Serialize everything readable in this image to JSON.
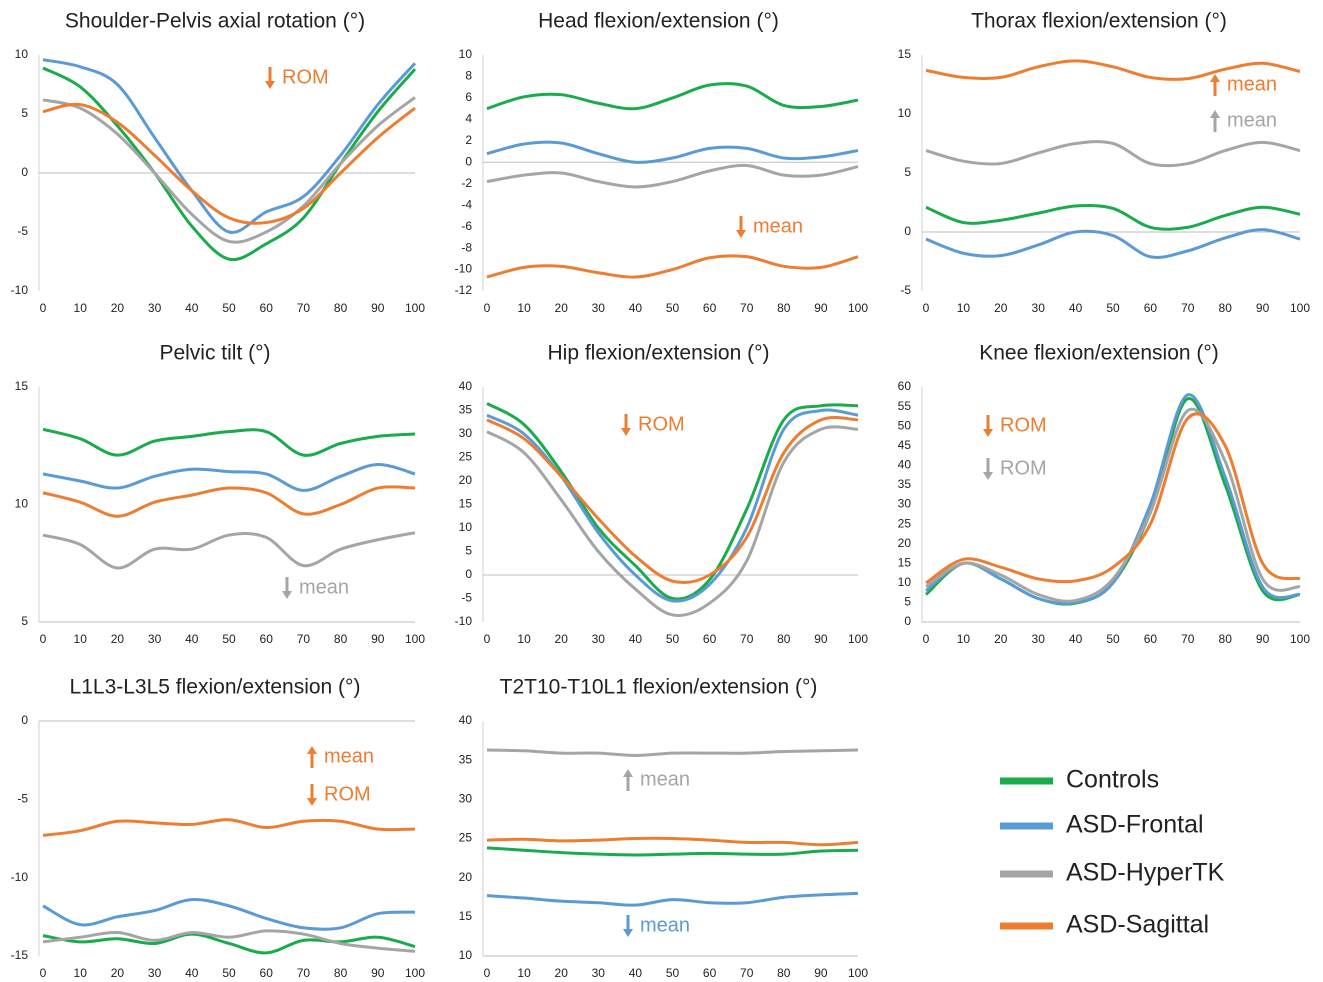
{
  "chart_data": [
    {
      "type": "line",
      "title": "Shoulder-Pelvis axial rotation (°)",
      "x": [
        0,
        10,
        20,
        30,
        40,
        50,
        60,
        70,
        80,
        90,
        100
      ],
      "xlim": [
        0,
        100
      ],
      "xticks": [
        0,
        10,
        20,
        30,
        40,
        50,
        60,
        70,
        80,
        90,
        100
      ],
      "ylim": [
        -10,
        10
      ],
      "yticks": [
        -10,
        -5,
        0,
        5,
        10
      ],
      "series": [
        {
          "name": "Controls",
          "color": "#1aab4a",
          "values": [
            8.9,
            7.3,
            4,
            0,
            -4.5,
            -7.3,
            -6,
            -3.8,
            0.8,
            5.2,
            8.8
          ]
        },
        {
          "name": "ASD-Frontal",
          "color": "#5b9bd5",
          "values": [
            9.6,
            9,
            7.5,
            3,
            -1.5,
            -5,
            -3.3,
            -2,
            1.5,
            5.8,
            9.3
          ]
        },
        {
          "name": "ASD-HyperTK",
          "color": "#a5a5a5",
          "values": [
            6.2,
            5.5,
            3.3,
            0,
            -3.5,
            -5.8,
            -5,
            -2.8,
            0.8,
            4,
            6.4
          ]
        },
        {
          "name": "ASD-Sagittal",
          "color": "#ed7d31",
          "values": [
            5.2,
            5.8,
            4.3,
            1.5,
            -1.5,
            -3.8,
            -4.2,
            -3,
            0,
            3,
            5.5
          ]
        }
      ],
      "annotations": [
        {
          "text": "ROM",
          "direction": "down",
          "color": "#ed7d31"
        }
      ]
    },
    {
      "type": "line",
      "title": "Head flexion/extension (°)",
      "x": [
        0,
        10,
        20,
        30,
        40,
        50,
        60,
        70,
        80,
        90,
        100
      ],
      "xlim": [
        0,
        100
      ],
      "xticks": [
        0,
        10,
        20,
        30,
        40,
        50,
        60,
        70,
        80,
        90,
        100
      ],
      "ylim": [
        -12,
        10
      ],
      "yticks": [
        -12,
        -10,
        -8,
        -6,
        -4,
        -2,
        0,
        2,
        4,
        6,
        8,
        10
      ],
      "series": [
        {
          "color": "#1aab4a",
          "values": [
            5,
            6.1,
            6.3,
            5.5,
            5,
            6,
            7.2,
            7.1,
            5.3,
            5.2,
            5.8
          ]
        },
        {
          "color": "#5b9bd5",
          "values": [
            0.8,
            1.7,
            1.8,
            0.8,
            0,
            0.4,
            1.3,
            1.3,
            0.4,
            0.5,
            1.1
          ]
        },
        {
          "color": "#a5a5a5",
          "values": [
            -1.8,
            -1.2,
            -1,
            -1.8,
            -2.3,
            -1.8,
            -0.8,
            -0.3,
            -1.2,
            -1.2,
            -0.4
          ]
        },
        {
          "color": "#ed7d31",
          "values": [
            -10.7,
            -9.8,
            -9.7,
            -10.3,
            -10.7,
            -10,
            -8.9,
            -8.8,
            -9.7,
            -9.8,
            -8.8
          ]
        }
      ],
      "annotations": [
        {
          "text": "mean",
          "direction": "down",
          "color": "#ed7d31"
        }
      ]
    },
    {
      "type": "line",
      "title": "Thorax flexion/extension (°)",
      "x": [
        0,
        10,
        20,
        30,
        40,
        50,
        60,
        70,
        80,
        90,
        100
      ],
      "xlim": [
        0,
        100
      ],
      "xticks": [
        0,
        10,
        20,
        30,
        40,
        50,
        60,
        70,
        80,
        90,
        100
      ],
      "ylim": [
        -5,
        15
      ],
      "yticks": [
        -5,
        0,
        5,
        10,
        15
      ],
      "series": [
        {
          "color": "#1aab4a",
          "values": [
            2.1,
            0.8,
            1,
            1.6,
            2.2,
            2,
            0.4,
            0.4,
            1.4,
            2.1,
            1.5
          ]
        },
        {
          "color": "#5b9bd5",
          "values": [
            -0.6,
            -1.8,
            -2,
            -1.1,
            0,
            -0.3,
            -2.1,
            -1.6,
            -0.5,
            0.2,
            -0.6
          ]
        },
        {
          "color": "#a5a5a5",
          "values": [
            6.9,
            6,
            5.8,
            6.7,
            7.5,
            7.5,
            5.8,
            5.8,
            6.9,
            7.6,
            6.9
          ]
        },
        {
          "color": "#ed7d31",
          "values": [
            13.7,
            13.1,
            13.1,
            14,
            14.5,
            14,
            13.1,
            13,
            13.8,
            14.3,
            13.6
          ]
        }
      ],
      "annotations": [
        {
          "text": "mean",
          "direction": "up",
          "color": "#ed7d31"
        },
        {
          "text": "mean",
          "direction": "up",
          "color": "#a5a5a5"
        }
      ]
    },
    {
      "type": "line",
      "title": "Pelvic tilt (°)",
      "x": [
        0,
        10,
        20,
        30,
        40,
        50,
        60,
        70,
        80,
        90,
        100
      ],
      "xlim": [
        0,
        100
      ],
      "xticks": [
        0,
        10,
        20,
        30,
        40,
        50,
        60,
        70,
        80,
        90,
        100
      ],
      "ylim": [
        5,
        15
      ],
      "yticks": [
        5,
        10,
        15
      ],
      "series": [
        {
          "color": "#1aab4a",
          "values": [
            13.2,
            12.8,
            12.1,
            12.7,
            12.9,
            13.1,
            13.1,
            12.1,
            12.6,
            12.9,
            13
          ]
        },
        {
          "color": "#5b9bd5",
          "values": [
            11.3,
            11,
            10.7,
            11.2,
            11.5,
            11.4,
            11.3,
            10.6,
            11.2,
            11.7,
            11.3
          ]
        },
        {
          "color": "#a5a5a5",
          "values": [
            8.7,
            8.3,
            7.3,
            8.1,
            8.1,
            8.7,
            8.6,
            7.4,
            8.1,
            8.5,
            8.8
          ]
        },
        {
          "color": "#ed7d31",
          "values": [
            10.5,
            10.1,
            9.5,
            10.1,
            10.4,
            10.7,
            10.5,
            9.6,
            10,
            10.7,
            10.7
          ]
        }
      ],
      "annotations": [
        {
          "text": "mean",
          "direction": "down",
          "color": "#a5a5a5"
        }
      ]
    },
    {
      "type": "line",
      "title": "Hip flexion/extension (°)",
      "x": [
        0,
        10,
        20,
        30,
        40,
        50,
        60,
        70,
        80,
        90,
        100
      ],
      "xlim": [
        0,
        100
      ],
      "xticks": [
        0,
        10,
        20,
        30,
        40,
        50,
        60,
        70,
        80,
        90,
        100
      ],
      "ylim": [
        -10,
        40
      ],
      "yticks": [
        -10,
        -5,
        0,
        5,
        10,
        15,
        20,
        25,
        30,
        35,
        40
      ],
      "series": [
        {
          "color": "#1aab4a",
          "values": [
            36.5,
            32,
            22,
            10,
            2,
            -5,
            -1,
            14,
            33,
            36,
            36
          ]
        },
        {
          "color": "#5b9bd5",
          "values": [
            34,
            30,
            21,
            9,
            0,
            -5.5,
            -2,
            10,
            31,
            35,
            34
          ]
        },
        {
          "color": "#a5a5a5",
          "values": [
            30.5,
            26,
            16,
            5,
            -3,
            -8.5,
            -6,
            3,
            24,
            31,
            31
          ]
        },
        {
          "color": "#ed7d31",
          "values": [
            33,
            29,
            21,
            12,
            4,
            -1.3,
            0,
            8,
            26,
            33,
            33
          ]
        }
      ],
      "annotations": [
        {
          "text": "ROM",
          "direction": "down",
          "color": "#ed7d31"
        }
      ]
    },
    {
      "type": "line",
      "title": "Knee flexion/extension (°)",
      "x": [
        0,
        10,
        20,
        30,
        40,
        50,
        60,
        70,
        80,
        90,
        100
      ],
      "xlim": [
        0,
        100
      ],
      "xticks": [
        0,
        10,
        20,
        30,
        40,
        50,
        60,
        70,
        80,
        90,
        100
      ],
      "ylim": [
        0,
        60
      ],
      "yticks": [
        0,
        5,
        10,
        15,
        20,
        25,
        30,
        35,
        40,
        45,
        50,
        55,
        60
      ],
      "series": [
        {
          "color": "#1aab4a",
          "values": [
            7,
            15,
            11,
            6,
            4.8,
            10,
            28,
            57,
            35,
            8,
            7
          ]
        },
        {
          "color": "#5b9bd5",
          "values": [
            8,
            15,
            11,
            6,
            5,
            10,
            30,
            58,
            37,
            9,
            7
          ]
        },
        {
          "color": "#a5a5a5",
          "values": [
            9,
            15,
            12,
            7,
            5.5,
            11,
            28,
            54,
            41,
            11,
            9
          ]
        },
        {
          "color": "#ed7d31",
          "values": [
            10,
            16,
            14,
            11,
            10.5,
            14,
            25,
            52,
            45,
            15,
            11
          ]
        }
      ],
      "annotations": [
        {
          "text": "ROM",
          "direction": "down",
          "color": "#ed7d31"
        },
        {
          "text": "ROM",
          "direction": "down",
          "color": "#a5a5a5"
        }
      ]
    },
    {
      "type": "line",
      "title": "L1L3-L3L5 flexion/extension (°)",
      "x": [
        0,
        10,
        20,
        30,
        40,
        50,
        60,
        70,
        80,
        90,
        100
      ],
      "xlim": [
        0,
        100
      ],
      "xticks": [
        0,
        10,
        20,
        30,
        40,
        50,
        60,
        70,
        80,
        90,
        100
      ],
      "ylim": [
        -15,
        0
      ],
      "yticks": [
        -15,
        -10,
        -5,
        0
      ],
      "series": [
        {
          "color": "#1aab4a",
          "values": [
            -13.7,
            -14.1,
            -13.9,
            -14.2,
            -13.6,
            -14.2,
            -14.8,
            -14,
            -14.1,
            -13.8,
            -14.4
          ]
        },
        {
          "color": "#5b9bd5",
          "values": [
            -11.8,
            -13,
            -12.5,
            -12.1,
            -11.4,
            -11.8,
            -12.6,
            -13.2,
            -13.2,
            -12.3,
            -12.2
          ]
        },
        {
          "color": "#a5a5a5",
          "values": [
            -14.1,
            -13.8,
            -13.5,
            -14,
            -13.5,
            -13.8,
            -13.4,
            -13.6,
            -14.2,
            -14.5,
            -14.7
          ]
        },
        {
          "color": "#ed7d31",
          "values": [
            -7.3,
            -7,
            -6.4,
            -6.5,
            -6.6,
            -6.3,
            -6.8,
            -6.4,
            -6.4,
            -6.9,
            -6.9
          ]
        }
      ],
      "annotations": [
        {
          "text": "mean",
          "direction": "up",
          "color": "#ed7d31"
        },
        {
          "text": "ROM",
          "direction": "down",
          "color": "#ed7d31"
        }
      ]
    },
    {
      "type": "line",
      "title": "T2T10-T10L1 flexion/extension (°)",
      "x": [
        0,
        10,
        20,
        30,
        40,
        50,
        60,
        70,
        80,
        90,
        100
      ],
      "xlim": [
        0,
        100
      ],
      "xticks": [
        0,
        10,
        20,
        30,
        40,
        50,
        60,
        70,
        80,
        90,
        100
      ],
      "ylim": [
        10,
        40
      ],
      "yticks": [
        10,
        15,
        20,
        25,
        30,
        35,
        40
      ],
      "series": [
        {
          "color": "#1aab4a",
          "values": [
            23.8,
            23.5,
            23.2,
            23,
            22.9,
            23,
            23.1,
            23,
            23,
            23.4,
            23.5
          ]
        },
        {
          "color": "#5b9bd5",
          "values": [
            17.7,
            17.4,
            17,
            16.8,
            16.5,
            17.2,
            16.8,
            16.8,
            17.5,
            17.8,
            18
          ]
        },
        {
          "color": "#a5a5a5",
          "values": [
            36.3,
            36.2,
            35.9,
            35.9,
            35.6,
            35.9,
            35.9,
            35.9,
            36.1,
            36.2,
            36.3
          ]
        },
        {
          "color": "#ed7d31",
          "values": [
            24.8,
            24.9,
            24.7,
            24.8,
            25,
            25,
            24.8,
            24.5,
            24.5,
            24.2,
            24.5
          ]
        }
      ],
      "annotations": [
        {
          "text": "mean",
          "direction": "up",
          "color": "#a5a5a5"
        },
        {
          "text": "mean",
          "direction": "down",
          "color": "#5b9bd5"
        }
      ]
    }
  ]
}
